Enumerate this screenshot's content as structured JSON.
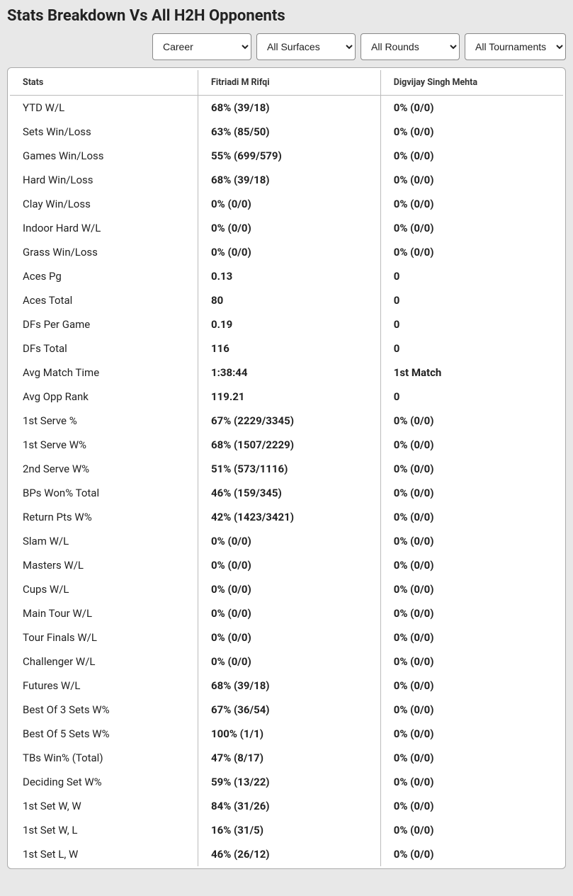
{
  "page_title": "Stats Breakdown Vs All H2H Opponents",
  "filters": {
    "period": {
      "selected": "Career",
      "options": [
        "Career"
      ]
    },
    "surface": {
      "selected": "All Surfaces",
      "options": [
        "All Surfaces"
      ]
    },
    "round": {
      "selected": "All Rounds",
      "options": [
        "All Rounds"
      ]
    },
    "tournament": {
      "selected": "All Tournaments",
      "options": [
        "All Tournaments"
      ]
    }
  },
  "table": {
    "headers": {
      "stats": "Stats",
      "player1": "Fitriadi M Rifqi",
      "player2": "Digvijay Singh Mehta"
    },
    "rows": [
      {
        "stat": "YTD W/L",
        "p1": "68% (39/18)",
        "p2": "0% (0/0)"
      },
      {
        "stat": "Sets Win/Loss",
        "p1": "63% (85/50)",
        "p2": "0% (0/0)"
      },
      {
        "stat": "Games Win/Loss",
        "p1": "55% (699/579)",
        "p2": "0% (0/0)"
      },
      {
        "stat": "Hard Win/Loss",
        "p1": "68% (39/18)",
        "p2": "0% (0/0)"
      },
      {
        "stat": "Clay Win/Loss",
        "p1": "0% (0/0)",
        "p2": "0% (0/0)"
      },
      {
        "stat": "Indoor Hard W/L",
        "p1": "0% (0/0)",
        "p2": "0% (0/0)"
      },
      {
        "stat": "Grass Win/Loss",
        "p1": "0% (0/0)",
        "p2": "0% (0/0)"
      },
      {
        "stat": "Aces Pg",
        "p1": "0.13",
        "p2": "0"
      },
      {
        "stat": "Aces Total",
        "p1": "80",
        "p2": "0"
      },
      {
        "stat": "DFs Per Game",
        "p1": "0.19",
        "p2": "0"
      },
      {
        "stat": "DFs Total",
        "p1": "116",
        "p2": "0"
      },
      {
        "stat": "Avg Match Time",
        "p1": "1:38:44",
        "p2": "1st Match"
      },
      {
        "stat": "Avg Opp Rank",
        "p1": "119.21",
        "p2": "0"
      },
      {
        "stat": "1st Serve %",
        "p1": "67% (2229/3345)",
        "p2": "0% (0/0)"
      },
      {
        "stat": "1st Serve W%",
        "p1": "68% (1507/2229)",
        "p2": "0% (0/0)"
      },
      {
        "stat": "2nd Serve W%",
        "p1": "51% (573/1116)",
        "p2": "0% (0/0)"
      },
      {
        "stat": "BPs Won% Total",
        "p1": "46% (159/345)",
        "p2": "0% (0/0)"
      },
      {
        "stat": "Return Pts W%",
        "p1": "42% (1423/3421)",
        "p2": "0% (0/0)"
      },
      {
        "stat": "Slam W/L",
        "p1": "0% (0/0)",
        "p2": "0% (0/0)"
      },
      {
        "stat": "Masters W/L",
        "p1": "0% (0/0)",
        "p2": "0% (0/0)"
      },
      {
        "stat": "Cups W/L",
        "p1": "0% (0/0)",
        "p2": "0% (0/0)"
      },
      {
        "stat": "Main Tour W/L",
        "p1": "0% (0/0)",
        "p2": "0% (0/0)"
      },
      {
        "stat": "Tour Finals W/L",
        "p1": "0% (0/0)",
        "p2": "0% (0/0)"
      },
      {
        "stat": "Challenger W/L",
        "p1": "0% (0/0)",
        "p2": "0% (0/0)"
      },
      {
        "stat": "Futures W/L",
        "p1": "68% (39/18)",
        "p2": "0% (0/0)"
      },
      {
        "stat": "Best Of 3 Sets W%",
        "p1": "67% (36/54)",
        "p2": "0% (0/0)"
      },
      {
        "stat": "Best Of 5 Sets W%",
        "p1": "100% (1/1)",
        "p2": "0% (0/0)"
      },
      {
        "stat": "TBs Win% (Total)",
        "p1": "47% (8/17)",
        "p2": "0% (0/0)"
      },
      {
        "stat": "Deciding Set W%",
        "p1": "59% (13/22)",
        "p2": "0% (0/0)"
      },
      {
        "stat": "1st Set W, W",
        "p1": "84% (31/26)",
        "p2": "0% (0/0)"
      },
      {
        "stat": "1st Set W, L",
        "p1": "16% (31/5)",
        "p2": "0% (0/0)"
      },
      {
        "stat": "1st Set L, W",
        "p1": "46% (26/12)",
        "p2": "0% (0/0)"
      }
    ]
  }
}
